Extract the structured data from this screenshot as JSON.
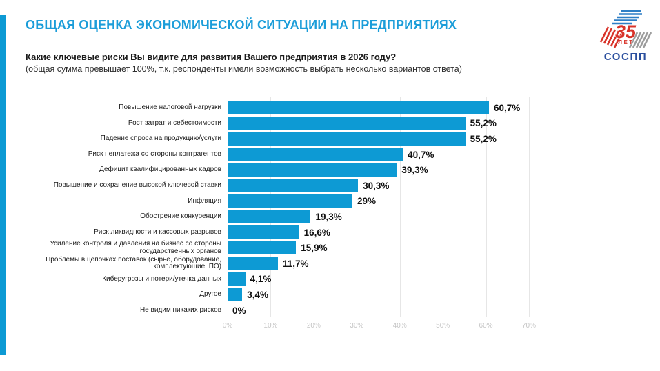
{
  "slide": {
    "title": "ОБЩАЯ ОЦЕНКА ЭКОНОМИЧЕСКОЙ СИТУАЦИИ НА ПРЕДПРИЯТИЯХ",
    "question": "Какие ключевые риски Вы видите для развития Вашего предприятия в 2026 году?",
    "note": "(общая сумма превышает 100%, т.к. респонденты имели возможность выбрать несколько вариантов ответа)"
  },
  "logo": {
    "anniversary_number": "35",
    "anniversary_caption": "ЛЕТ",
    "org_name": "СОСПП"
  },
  "colors": {
    "accent_blue": "#0d9ad4",
    "bar_blue": "#0d9ad4",
    "title_blue": "#1b9dd9",
    "text_dark": "#1b1b1b",
    "grid_gray": "#e6e6e6",
    "axis_label_gray": "#c5c5c5",
    "logo_red": "#d8342b",
    "logo_blue": "#2e7fc6",
    "logo_gray": "#9c9c9c",
    "logo_org_blue": "#2b4f9e"
  },
  "chart_data": {
    "type": "bar",
    "orientation": "horizontal",
    "title": "Какие ключевые риски Вы видите для развития Вашего предприятия в 2026 году?",
    "categories": [
      "Повышение налоговой нагрузки",
      "Рост затрат и себестоимости",
      "Падение спроса на продукцию/услуги",
      "Риск неплатежа со стороны контрагентов",
      "Дефицит квалифицированных кадров",
      "Повышение и сохранение высокой ключевой ставки",
      "Инфляция",
      "Обострение конкуренции",
      "Риск ликвидности и кассовых разрывов",
      "Усиление контроля и давления на бизнес со стороны государственных органов",
      "Проблемы в цепочках поставок (сырье, оборудование, комплектующие, ПО)",
      "Киберугрозы и потери/утечка данных",
      "Другое",
      "Не видим никаких рисков"
    ],
    "values": [
      60.7,
      55.2,
      55.2,
      40.7,
      39.3,
      30.3,
      29,
      19.3,
      16.6,
      15.9,
      11.7,
      4.1,
      3.4,
      0
    ],
    "value_labels": [
      "60,7%",
      "55,2%",
      "55,2%",
      "40,7%",
      "39,3%",
      "30,3%",
      "29%",
      "19,3%",
      "16,6%",
      "15,9%",
      "11,7%",
      "4,1%",
      "3,4%",
      "0%"
    ],
    "x_ticks": [
      "0%",
      "10%",
      "20%",
      "30%",
      "40%",
      "50%",
      "60%",
      "70%"
    ],
    "xlim": [
      0,
      70
    ],
    "grid": true,
    "legend": false,
    "value_label_position": "end"
  }
}
